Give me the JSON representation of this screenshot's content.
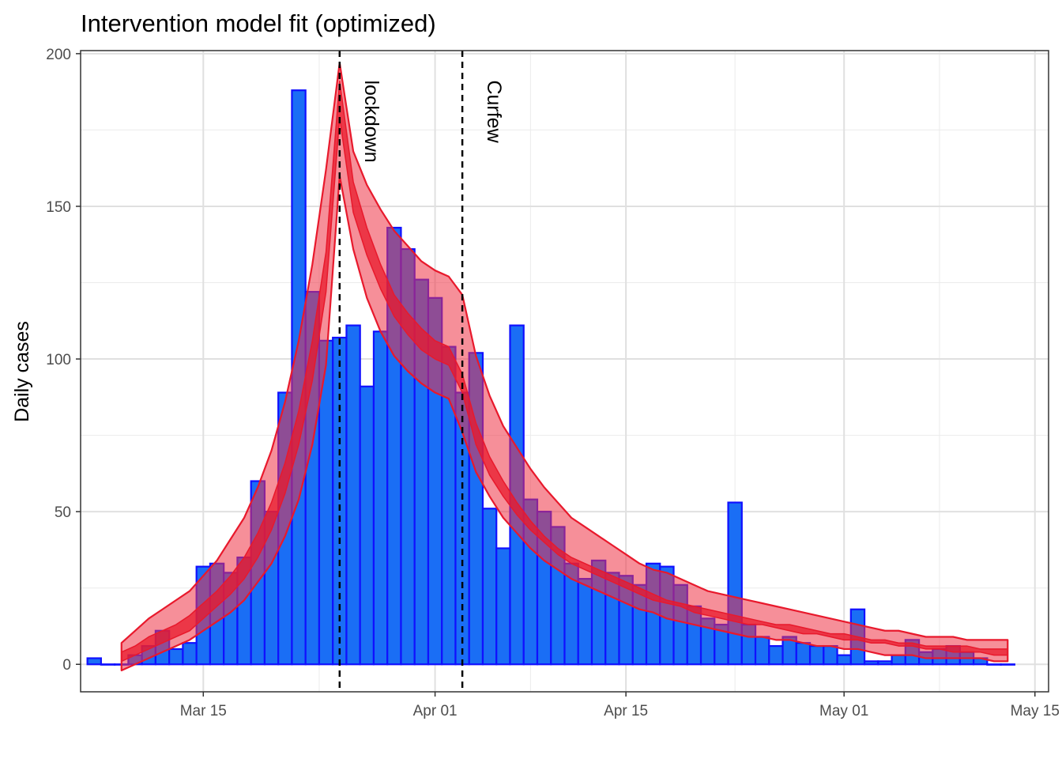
{
  "chart_data": {
    "type": "bar",
    "title": "Intervention model fit (optimized)",
    "xlabel": "",
    "ylabel": "Daily cases",
    "x_type": "date",
    "xlim": [
      "2020-03-06",
      "2020-05-16"
    ],
    "ylim": [
      -9,
      201
    ],
    "x_ticks": [
      {
        "date": "2020-03-15",
        "label": "Mar 15"
      },
      {
        "date": "2020-04-01",
        "label": "Apr 01"
      },
      {
        "date": "2020-04-15",
        "label": "Apr 15"
      },
      {
        "date": "2020-05-01",
        "label": "May 01"
      },
      {
        "date": "2020-05-15",
        "label": "May 15"
      }
    ],
    "y_ticks": [
      {
        "value": 0,
        "label": "0"
      },
      {
        "value": 50,
        "label": "50"
      },
      {
        "value": 100,
        "label": "100"
      },
      {
        "value": 150,
        "label": "150"
      },
      {
        "value": 200,
        "label": "200"
      }
    ],
    "grid": true,
    "annotations": [
      {
        "date": "2020-03-25",
        "label": "lockdown"
      },
      {
        "date": "2020-04-03",
        "label": "Curfew"
      }
    ],
    "colors": {
      "bar_fill": "#1a6ef5",
      "bar_stroke": "#1010ff",
      "band_fill": "#ee3346",
      "band_stroke": "#e8192c",
      "inner_band_fill": "#e8192c"
    },
    "daily_cases": {
      "dates": [
        "2020-03-07",
        "2020-03-08",
        "2020-03-09",
        "2020-03-10",
        "2020-03-11",
        "2020-03-12",
        "2020-03-13",
        "2020-03-14",
        "2020-03-15",
        "2020-03-16",
        "2020-03-17",
        "2020-03-18",
        "2020-03-19",
        "2020-03-20",
        "2020-03-21",
        "2020-03-22",
        "2020-03-23",
        "2020-03-24",
        "2020-03-25",
        "2020-03-26",
        "2020-03-27",
        "2020-03-28",
        "2020-03-29",
        "2020-03-30",
        "2020-03-31",
        "2020-04-01",
        "2020-04-02",
        "2020-04-03",
        "2020-04-04",
        "2020-04-05",
        "2020-04-06",
        "2020-04-07",
        "2020-04-08",
        "2020-04-09",
        "2020-04-10",
        "2020-04-11",
        "2020-04-12",
        "2020-04-13",
        "2020-04-14",
        "2020-04-15",
        "2020-04-16",
        "2020-04-17",
        "2020-04-18",
        "2020-04-19",
        "2020-04-20",
        "2020-04-21",
        "2020-04-22",
        "2020-04-23",
        "2020-04-24",
        "2020-04-25",
        "2020-04-26",
        "2020-04-27",
        "2020-04-28",
        "2020-04-29",
        "2020-04-30",
        "2020-05-01",
        "2020-05-02",
        "2020-05-03",
        "2020-05-04",
        "2020-05-05",
        "2020-05-06",
        "2020-05-07",
        "2020-05-08",
        "2020-05-09",
        "2020-05-10",
        "2020-05-11",
        "2020-05-12",
        "2020-05-13"
      ],
      "values": [
        2,
        0,
        0,
        3,
        6,
        11,
        5,
        7,
        32,
        33,
        30,
        35,
        60,
        50,
        89,
        188,
        122,
        106,
        107,
        111,
        91,
        109,
        143,
        136,
        126,
        120,
        104,
        89,
        102,
        51,
        38,
        111,
        54,
        50,
        45,
        33,
        28,
        34,
        30,
        29,
        26,
        33,
        32,
        26,
        19,
        15,
        13,
        53,
        13,
        9,
        6,
        9,
        7,
        6,
        6,
        3,
        18,
        1,
        1,
        3,
        8,
        4,
        5,
        6,
        4,
        2,
        0,
        0
      ]
    },
    "model_fit": {
      "dates": [
        "2020-03-09",
        "2020-03-10",
        "2020-03-11",
        "2020-03-12",
        "2020-03-13",
        "2020-03-14",
        "2020-03-15",
        "2020-03-16",
        "2020-03-17",
        "2020-03-18",
        "2020-03-19",
        "2020-03-20",
        "2020-03-21",
        "2020-03-22",
        "2020-03-23",
        "2020-03-24",
        "2020-03-25",
        "2020-03-26",
        "2020-03-27",
        "2020-03-28",
        "2020-03-29",
        "2020-03-30",
        "2020-03-31",
        "2020-04-01",
        "2020-04-02",
        "2020-04-03",
        "2020-04-04",
        "2020-04-05",
        "2020-04-06",
        "2020-04-07",
        "2020-04-08",
        "2020-04-09",
        "2020-04-10",
        "2020-04-11",
        "2020-04-12",
        "2020-04-13",
        "2020-04-14",
        "2020-04-15",
        "2020-04-16",
        "2020-04-17",
        "2020-04-18",
        "2020-04-19",
        "2020-04-20",
        "2020-04-21",
        "2020-04-22",
        "2020-04-23",
        "2020-04-24",
        "2020-04-25",
        "2020-04-26",
        "2020-04-27",
        "2020-04-28",
        "2020-04-29",
        "2020-04-30",
        "2020-05-01",
        "2020-05-02",
        "2020-05-03",
        "2020-05-04",
        "2020-05-05",
        "2020-05-06",
        "2020-05-07",
        "2020-05-08",
        "2020-05-09",
        "2020-05-10",
        "2020-05-11",
        "2020-05-12",
        "2020-05-13"
      ],
      "outer_upper": [
        7,
        11,
        15,
        18,
        21,
        24,
        29,
        34,
        41,
        48,
        58,
        70,
        86,
        106,
        131,
        162,
        197,
        168,
        157,
        149,
        142,
        137,
        132,
        129,
        127,
        121,
        101,
        88,
        78,
        71,
        64,
        58,
        53,
        48,
        45,
        42,
        39,
        36,
        33,
        31,
        30,
        28,
        26,
        24,
        23,
        22,
        21,
        20,
        19,
        18,
        17,
        16,
        15,
        14,
        13,
        12,
        11,
        11,
        10,
        9,
        9,
        9,
        8,
        8,
        8,
        8
      ],
      "outer_lower": [
        -2,
        0,
        2,
        4,
        6,
        8,
        11,
        14,
        17,
        21,
        27,
        33,
        42,
        54,
        72,
        98,
        160,
        136,
        120,
        109,
        101,
        96,
        92,
        89,
        87,
        76,
        63,
        55,
        48,
        43,
        38,
        34,
        31,
        28,
        26,
        24,
        22,
        20,
        18,
        17,
        15,
        14,
        13,
        12,
        11,
        10,
        9,
        9,
        8,
        8,
        7,
        6,
        6,
        5,
        5,
        4,
        3,
        3,
        3,
        2,
        2,
        2,
        2,
        2,
        1,
        1
      ],
      "inner_upper": [
        4,
        6,
        9,
        11,
        13,
        16,
        20,
        24,
        29,
        35,
        43,
        53,
        66,
        83,
        106,
        135,
        191,
        158,
        143,
        131,
        121,
        115,
        110,
        106,
        104,
        95,
        79,
        68,
        60,
        53,
        47,
        42,
        38,
        35,
        33,
        31,
        29,
        27,
        25,
        23,
        21,
        20,
        19,
        18,
        17,
        16,
        15,
        14,
        13,
        13,
        12,
        11,
        10,
        10,
        9,
        8,
        8,
        7,
        7,
        6,
        6,
        6,
        6,
        5,
        5,
        5
      ],
      "inner_lower": [
        1,
        3,
        5,
        7,
        9,
        11,
        15,
        19,
        23,
        28,
        35,
        44,
        56,
        72,
        93,
        122,
        179,
        148,
        134,
        123,
        114,
        108,
        103,
        100,
        98,
        89,
        72,
        62,
        55,
        49,
        44,
        40,
        36,
        33,
        31,
        29,
        27,
        25,
        23,
        21,
        20,
        19,
        17,
        16,
        15,
        14,
        13,
        13,
        12,
        11,
        10,
        10,
        9,
        8,
        8,
        7,
        7,
        6,
        6,
        5,
        5,
        4,
        4,
        4,
        3,
        3
      ]
    }
  }
}
